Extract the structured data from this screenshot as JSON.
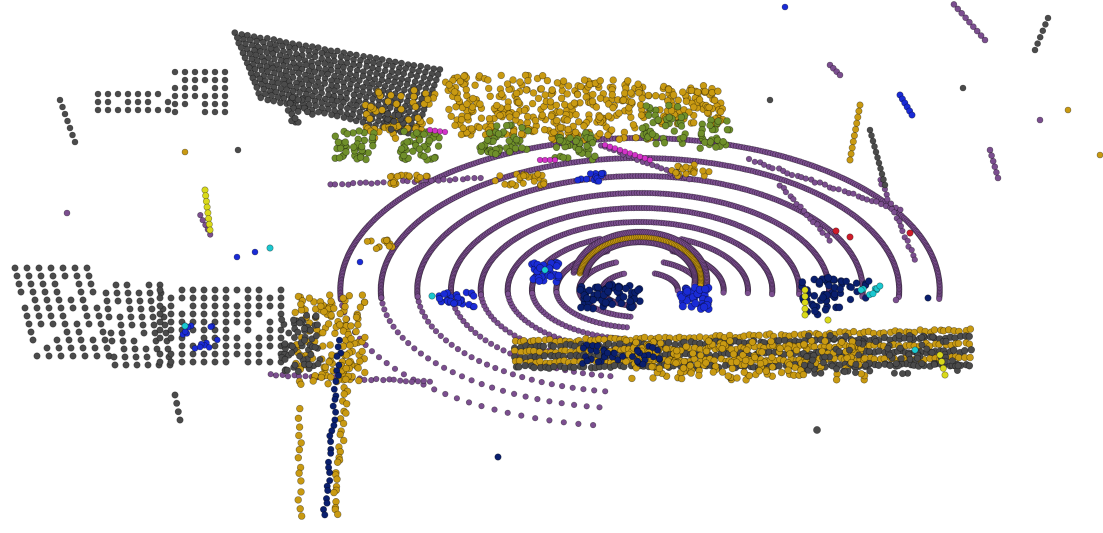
{
  "scene": {
    "kind": "lidar-point-cloud",
    "background": "#ffffff",
    "legend": [],
    "class_colors": {
      "ground": "#7b4e8f",
      "building": "#4b4b4b",
      "structure": "#c99a12",
      "vegetation": "#6f8f2a",
      "car": "#0a1f6e",
      "person": "#1a2bd6",
      "pole": "#d9d91a",
      "sign": "#1bc8d0",
      "bicycle": "#d233c8",
      "other": "#d01c2a"
    }
  }
}
